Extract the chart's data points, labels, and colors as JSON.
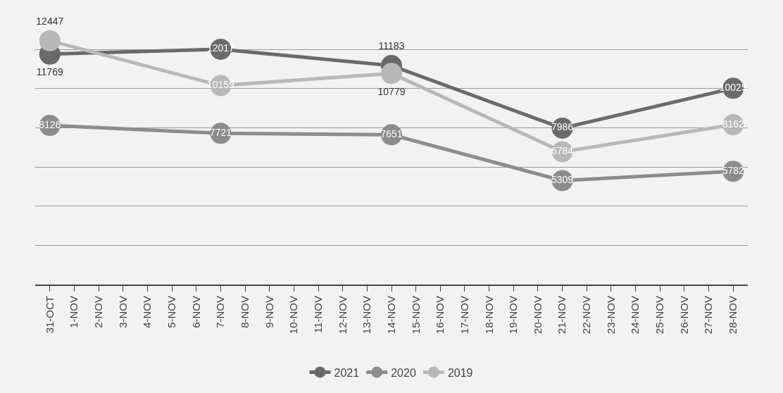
{
  "chart_data": {
    "type": "line",
    "categories": [
      "31-OCT",
      "1-NOV",
      "2-NOV",
      "3-NOV",
      "4-NOV",
      "5-NOV",
      "6-NOV",
      "7-NOV",
      "8-NOV",
      "9-NOV",
      "10-NOV",
      "11-NOV",
      "12-NOV",
      "13-NOV",
      "14-NOV",
      "15-NOV",
      "16-NOV",
      "17-NOV",
      "18-NOV",
      "19-NOV",
      "20-NOV",
      "21-NOV",
      "22-NOV",
      "23-NOV",
      "24-NOV",
      "25-NOV",
      "26-NOV",
      "27-NOV",
      "28-NOV"
    ],
    "series": [
      {
        "name": "2021",
        "color": "#6a6a6a",
        "values": [
          11769,
          null,
          null,
          null,
          null,
          null,
          null,
          12017,
          null,
          null,
          null,
          null,
          null,
          null,
          11183,
          null,
          null,
          null,
          null,
          null,
          null,
          7986,
          null,
          null,
          null,
          null,
          null,
          null,
          10025
        ]
      },
      {
        "name": "2020",
        "color": "#8c8c8c",
        "values": [
          8126,
          null,
          null,
          null,
          null,
          null,
          null,
          7721,
          null,
          null,
          null,
          null,
          null,
          null,
          7651,
          null,
          null,
          null,
          null,
          null,
          null,
          5309,
          null,
          null,
          null,
          null,
          null,
          null,
          5782
        ]
      },
      {
        "name": "2019",
        "color": "#b8b8b8",
        "values": [
          12447,
          null,
          null,
          null,
          null,
          null,
          null,
          10159,
          null,
          null,
          null,
          null,
          null,
          null,
          10779,
          null,
          null,
          null,
          null,
          null,
          null,
          6784,
          null,
          null,
          null,
          null,
          null,
          null,
          8162
        ]
      }
    ],
    "tick_labels": "x",
    "grid": "y",
    "legend": "bottom",
    "marker": "circle",
    "line_style": "solid",
    "data_labels": true
  }
}
